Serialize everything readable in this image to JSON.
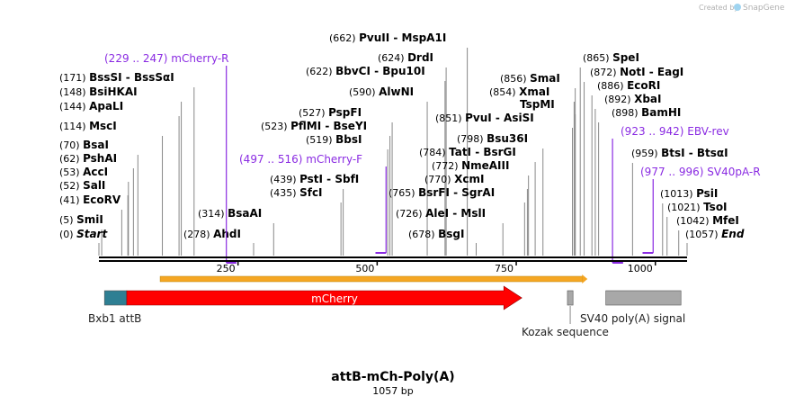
{
  "map": {
    "title": "attB-mCh-Poly(A)",
    "length_label": "1057 bp",
    "length": 1057,
    "credit": "Created by",
    "brand": "SnapGene",
    "scale_ticks": [
      250,
      500,
      750,
      1000
    ]
  },
  "sites": [
    {
      "pos": "(0)",
      "name": "Start",
      "at": 0,
      "italic": true
    },
    {
      "pos": "(5)",
      "name": "SmiI",
      "at": 5
    },
    {
      "pos": "(41)",
      "name": "EcoRV",
      "at": 41
    },
    {
      "pos": "(52)",
      "name": "SalI",
      "at": 52
    },
    {
      "pos": "(53)",
      "name": "AccI",
      "at": 53
    },
    {
      "pos": "(62)",
      "name": "PshAI",
      "at": 62
    },
    {
      "pos": "(70)",
      "name": "BsaI",
      "at": 70
    },
    {
      "pos": "(114)",
      "name": "MscI",
      "at": 114
    },
    {
      "pos": "(144)",
      "name": "ApaLI",
      "at": 144
    },
    {
      "pos": "(148)",
      "name": "BsiHKAI",
      "at": 148
    },
    {
      "pos": "(171)",
      "name": "BssSI - BssSαI",
      "at": 171
    },
    {
      "pos": "(278)",
      "name": "AhdI",
      "at": 278
    },
    {
      "pos": "(314)",
      "name": "BsaAI",
      "at": 314
    },
    {
      "pos": "(435)",
      "name": "SfcI",
      "at": 435
    },
    {
      "pos": "(439)",
      "name": "PstI - SbfI",
      "at": 439
    },
    {
      "pos": "(519)",
      "name": "BbsI",
      "at": 519
    },
    {
      "pos": "(523)",
      "name": "PflMI - BseYI",
      "at": 523
    },
    {
      "pos": "(527)",
      "name": "PspFI",
      "at": 527
    },
    {
      "pos": "(590)",
      "name": "AlwNI",
      "at": 590
    },
    {
      "pos": "(622)",
      "name": "BbvCI - Bpu10I",
      "at": 622
    },
    {
      "pos": "(624)",
      "name": "DrdI",
      "at": 624
    },
    {
      "pos": "(662)",
      "name": "PvuII - MspA1I",
      "at": 662
    },
    {
      "pos": "(678)",
      "name": "BsgI",
      "at": 678
    },
    {
      "pos": "(726)",
      "name": "AleI - MslI",
      "at": 726
    },
    {
      "pos": "(765)",
      "name": "BsrFI - SgrAI",
      "at": 765
    },
    {
      "pos": "(770)",
      "name": "XcmI",
      "at": 770
    },
    {
      "pos": "(772)",
      "name": "NmeAIII",
      "at": 772
    },
    {
      "pos": "(784)",
      "name": "TatI - BsrGI",
      "at": 784
    },
    {
      "pos": "(798)",
      "name": "Bsu36I",
      "at": 798
    },
    {
      "pos": "(851)",
      "name": "PvuI - AsiSI",
      "at": 851
    },
    {
      "pos": "(854)",
      "name": "XmaI",
      "at": 854
    },
    {
      "pos": "(856)",
      "name": "SmaI",
      "at": 856
    },
    {
      "pos": "",
      "name": "TspMI",
      "at": 856
    },
    {
      "pos": "(865)",
      "name": "SpeI",
      "at": 865
    },
    {
      "pos": "(872)",
      "name": "NotI - EagI",
      "at": 872
    },
    {
      "pos": "(886)",
      "name": "EcoRI",
      "at": 886
    },
    {
      "pos": "(892)",
      "name": "XbaI",
      "at": 892
    },
    {
      "pos": "(898)",
      "name": "BamHI",
      "at": 898
    },
    {
      "pos": "(959)",
      "name": "BtsI - BtsαI",
      "at": 959
    },
    {
      "pos": "(1013)",
      "name": "PsiI",
      "at": 1013
    },
    {
      "pos": "(1021)",
      "name": "TsoI",
      "at": 1021
    },
    {
      "pos": "(1042)",
      "name": "MfeI",
      "at": 1042
    },
    {
      "pos": "(1057)",
      "name": "End",
      "at": 1057,
      "italic": true
    }
  ],
  "primers": [
    {
      "range": "(229 .. 247)",
      "name": "mCherry-R",
      "start": 229,
      "end": 247,
      "strand": "reverse"
    },
    {
      "range": "(497 .. 516)",
      "name": "mCherry-F",
      "start": 497,
      "end": 516,
      "strand": "forward"
    },
    {
      "range": "(923 .. 942)",
      "name": "EBV-rev",
      "start": 923,
      "end": 942,
      "strand": "reverse"
    },
    {
      "range": "(977 .. 996)",
      "name": "SV40pA-R",
      "start": 977,
      "end": 996,
      "strand": "forward"
    }
  ],
  "features": [
    {
      "name": "Bxb1 attB",
      "start": 10,
      "end": 50,
      "color": "#2e7f93",
      "shape": "box"
    },
    {
      "name": "mCherry",
      "start": 50,
      "end": 760,
      "color": "#ff0000",
      "shape": "arrow"
    },
    {
      "name": "Kozak sequence",
      "start": 842,
      "end": 852,
      "color": "#a8a8a8",
      "shape": "box"
    },
    {
      "name": "SV40 poly(A) signal",
      "start": 911,
      "end": 1046,
      "color": "#a8a8a8",
      "shape": "box"
    }
  ],
  "orf": {
    "start": 110,
    "end": 878,
    "color": "#f5a623"
  },
  "colors": {
    "primer": "#8a2be2",
    "backbone": "#000000",
    "site_line": "#888888"
  }
}
